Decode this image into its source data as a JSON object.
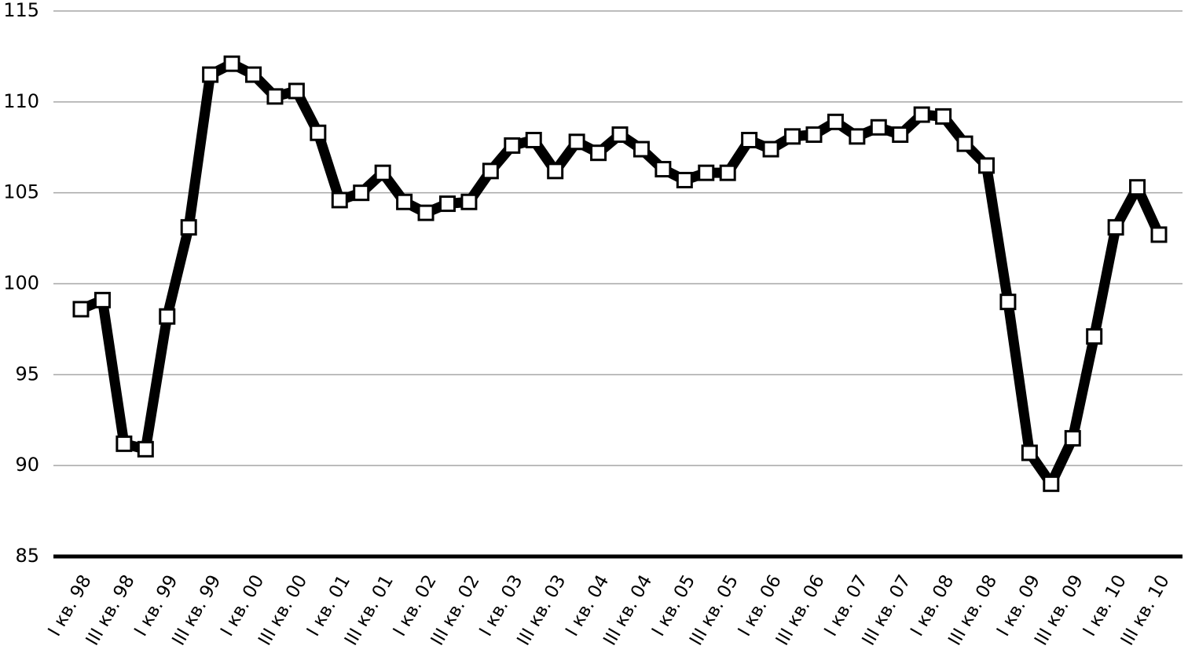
{
  "chart_data": {
    "type": "line",
    "categories": [
      "I кв. 98",
      null,
      "III кв. 98",
      null,
      "I кв. 99",
      null,
      "III кв. 99",
      null,
      "I кв. 00",
      null,
      "III кв. 00",
      null,
      "I кв. 01",
      null,
      "III кв. 01",
      null,
      "I кв. 02",
      null,
      "III кв. 02",
      null,
      "I кв. 03",
      null,
      "III кв. 03",
      null,
      "I кв. 04",
      null,
      "III кв. 04",
      null,
      "I кв. 05",
      null,
      "III кв. 05",
      null,
      "I кв. 06",
      null,
      "III кв. 06",
      null,
      "I кв. 07",
      null,
      "III кв. 07",
      null,
      "I кв. 08",
      null,
      "III кв. 08",
      null,
      "I кв. 09",
      null,
      "III кв. 09",
      null,
      "I кв. 10",
      null,
      "III кв. 10"
    ],
    "series": [
      {
        "color": "#000000",
        "values": [
          98.6,
          99.1,
          91.2,
          90.9,
          98.2,
          103.1,
          111.5,
          112.1,
          111.5,
          110.3,
          110.6,
          108.3,
          104.6,
          105.0,
          106.1,
          104.5,
          103.9,
          104.4,
          104.5,
          106.2,
          107.6,
          107.9,
          106.2,
          107.8,
          107.2,
          108.2,
          107.4,
          106.3,
          105.7,
          106.1,
          106.1,
          107.9,
          107.4,
          108.1,
          108.2,
          108.9,
          108.1,
          108.6,
          108.2,
          109.3,
          109.2,
          107.7,
          106.5,
          99.0,
          90.7,
          89.0,
          91.5,
          97.1,
          103.1,
          105.3,
          102.7
        ]
      }
    ],
    "ylim": [
      85,
      115
    ],
    "yticks": [
      85,
      90,
      95,
      100,
      105,
      110,
      115
    ],
    "grid": true
  }
}
